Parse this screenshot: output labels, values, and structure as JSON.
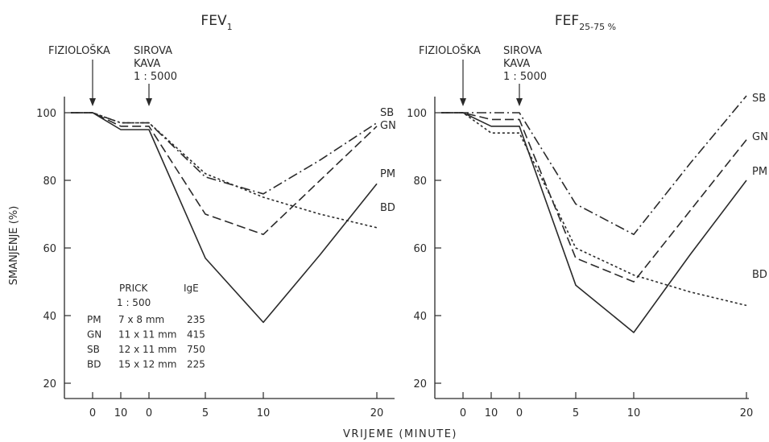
{
  "chart_data": [
    {
      "type": "line",
      "title": "FEV",
      "title_subscript": "1",
      "ylabel": "SMANJENJE (%)",
      "ylim": [
        0,
        100
      ],
      "y_ticks": [
        "100",
        "80",
        "60",
        "40",
        "20"
      ],
      "x_ticks": [
        "0",
        "10",
        "0",
        "5",
        "10",
        "20"
      ],
      "annotations": [
        {
          "label": "FIZIOLOŠKA",
          "x": 0
        },
        {
          "label": "SIROVA KAVA 1 : 5000",
          "x": 20
        }
      ],
      "series": [
        {
          "name": "SB",
          "x": [
            -20,
            0,
            10,
            20,
            30,
            40,
            50,
            60
          ],
          "values": [
            100,
            100,
            97,
            97,
            81,
            76,
            86,
            97
          ]
        },
        {
          "name": "GN",
          "x": [
            -20,
            0,
            10,
            20,
            30,
            40,
            50,
            60
          ],
          "values": [
            100,
            100,
            96,
            96,
            70,
            64,
            80,
            96
          ]
        },
        {
          "name": "PM",
          "x": [
            -20,
            0,
            10,
            20,
            30,
            40,
            50,
            60
          ],
          "values": [
            100,
            100,
            95,
            95,
            57,
            38,
            58,
            79
          ]
        },
        {
          "name": "BD",
          "x": [
            -20,
            0,
            10,
            20,
            30,
            40,
            50,
            60
          ],
          "values": [
            100,
            100,
            97,
            97,
            82,
            75,
            70,
            66
          ]
        }
      ],
      "inset_table": {
        "headers": [
          "PRICK",
          "IgE"
        ],
        "subheader": "1 : 500",
        "rows": [
          [
            "PM",
            "7 x 8 mm",
            "235"
          ],
          [
            "GN",
            "11 x 11 mm",
            "415"
          ],
          [
            "SB",
            "12 x 11 mm",
            "750"
          ],
          [
            "BD",
            "15 x 12 mm",
            "225"
          ]
        ]
      }
    },
    {
      "type": "line",
      "title": "FEF",
      "title_subscript": "25-75 %",
      "ylim": [
        0,
        100
      ],
      "y_ticks": [
        "100",
        "80",
        "60",
        "40",
        "20"
      ],
      "x_ticks": [
        "0",
        "10",
        "0",
        "5",
        "10",
        "20"
      ],
      "annotations": [
        {
          "label": "FIZIOLOŠKA",
          "x": 0
        },
        {
          "label": "SIROVA KAVA 1 : 5000",
          "x": 20
        }
      ],
      "series": [
        {
          "name": "SB",
          "x": [
            -20,
            0,
            10,
            20,
            30,
            40,
            50,
            60
          ],
          "values": [
            100,
            100,
            100,
            100,
            73,
            64,
            85,
            105
          ]
        },
        {
          "name": "GN",
          "x": [
            -20,
            0,
            10,
            20,
            30,
            40,
            50,
            60
          ],
          "values": [
            100,
            100,
            98,
            98,
            57,
            50,
            71,
            92
          ]
        },
        {
          "name": "PM",
          "x": [
            -20,
            0,
            10,
            20,
            30,
            40,
            50,
            60
          ],
          "values": [
            100,
            100,
            96,
            96,
            49,
            35,
            58,
            80
          ]
        },
        {
          "name": "BD",
          "x": [
            -20,
            0,
            10,
            20,
            30,
            40,
            50,
            60
          ],
          "values": [
            100,
            100,
            94,
            94,
            60,
            52,
            47,
            43
          ]
        }
      ]
    }
  ],
  "shared_xlabel": "VRIJEME (MINUTE)",
  "styles": {
    "ink": "#2a2a2a",
    "dash": {
      "SB": "12,4,2,4",
      "GN": "11,5",
      "PM": "",
      "BD": "3,3"
    }
  }
}
